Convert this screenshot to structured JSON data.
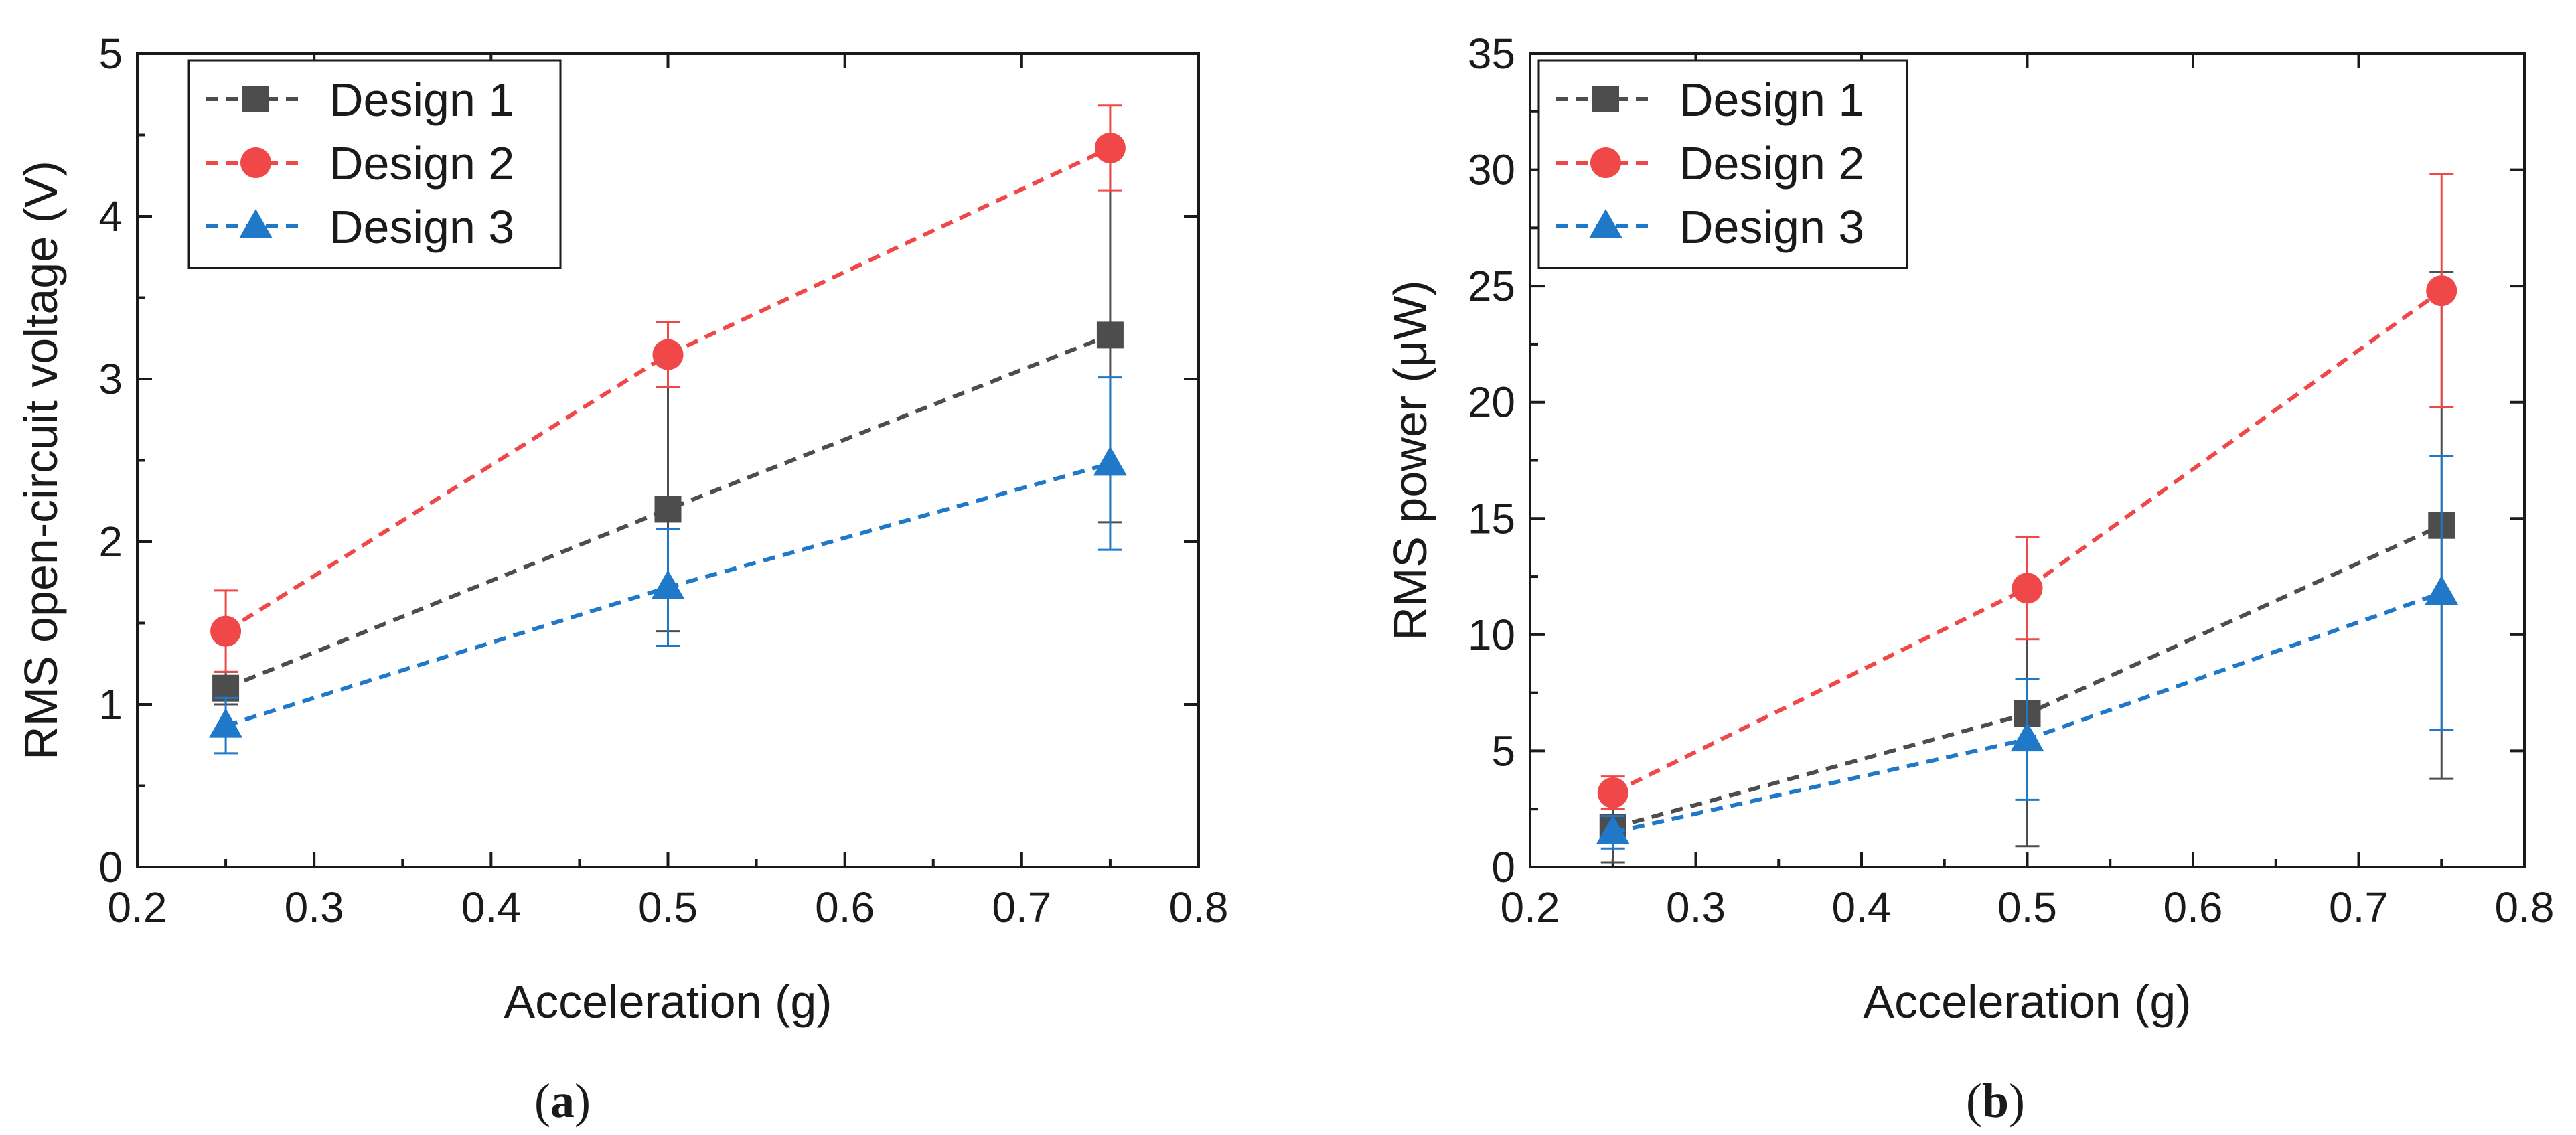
{
  "chart_data": [
    {
      "type": "line",
      "panel_label": "a",
      "xlabel": "Acceleration (g)",
      "ylabel": "RMS open-circuit voltage (V)",
      "xlim": [
        0.2,
        0.8
      ],
      "ylim": [
        0,
        5
      ],
      "xticks": [
        0.2,
        0.3,
        0.4,
        0.5,
        0.6,
        0.7,
        0.8
      ],
      "yticks": [
        0,
        1,
        2,
        3,
        4,
        5
      ],
      "grid": false,
      "legend_position": "top-left",
      "x": [
        0.25,
        0.5,
        0.75
      ],
      "series": [
        {
          "name": "Design 1",
          "marker": "square",
          "color": "#4d4d4d",
          "y": [
            1.1,
            2.2,
            3.27
          ],
          "err": [
            0.1,
            0.75,
            1.15
          ]
        },
        {
          "name": "Design 2",
          "marker": "circle",
          "color": "#f04848",
          "y": [
            1.45,
            3.15,
            4.42
          ],
          "err": [
            0.25,
            0.2,
            0.26
          ]
        },
        {
          "name": "Design 3",
          "marker": "triangle",
          "color": "#1f78c8",
          "y": [
            0.87,
            1.72,
            2.48
          ],
          "err": [
            0.17,
            0.36,
            0.53
          ]
        }
      ]
    },
    {
      "type": "line",
      "panel_label": "b",
      "xlabel": "Acceleration (g)",
      "ylabel": "RMS power (μW)",
      "xlim": [
        0.2,
        0.8
      ],
      "ylim": [
        0,
        35
      ],
      "xticks": [
        0.2,
        0.3,
        0.4,
        0.5,
        0.6,
        0.7,
        0.8
      ],
      "yticks": [
        0,
        5,
        10,
        15,
        20,
        25,
        30,
        35
      ],
      "grid": false,
      "legend_position": "top-left",
      "x": [
        0.25,
        0.5,
        0.75
      ],
      "series": [
        {
          "name": "Design 1",
          "marker": "square",
          "color": "#4d4d4d",
          "y": [
            1.7,
            6.6,
            14.7
          ],
          "err": [
            1.5,
            5.7,
            10.9
          ]
        },
        {
          "name": "Design 2",
          "marker": "circle",
          "color": "#f04848",
          "y": [
            3.2,
            12.0,
            24.8
          ],
          "err": [
            0.7,
            2.2,
            5.0
          ]
        },
        {
          "name": "Design 3",
          "marker": "triangle",
          "color": "#1f78c8",
          "y": [
            1.5,
            5.5,
            11.8
          ],
          "err": [
            0.7,
            2.6,
            5.9
          ]
        }
      ]
    }
  ]
}
